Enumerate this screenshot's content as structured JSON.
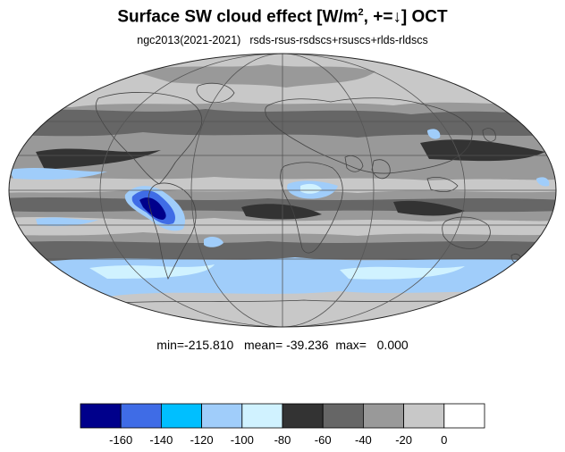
{
  "header": {
    "title_main": "Surface SW cloud effect [W/m",
    "title_sup": "2",
    "title_rest": ", +=↓]  OCT",
    "subtitle_left": "ngc2013(2021-2021)",
    "subtitle_right": "rsds-rsus-rsdscs+rsuscs+rlds-rldscs"
  },
  "stats": {
    "min_label": "min=",
    "min_value": "-215.810",
    "mean_label": "mean=",
    "mean_value": "-39.236",
    "max_label": "max=",
    "max_value": "0.000"
  },
  "colorbar": {
    "colors": [
      "#00008b",
      "#3f6ce6",
      "#00bfff",
      "#a0cdfa",
      "#d0f2ff",
      "#333333",
      "#666666",
      "#999999",
      "#c8c8c8",
      "#ffffff"
    ],
    "tick_labels": [
      "-160",
      "-140",
      "-120",
      "-100",
      "-80",
      "-60",
      "-40",
      "-20",
      "0"
    ]
  },
  "map": {
    "projection": "mollweide",
    "colors": {
      "land_outline": "#444444",
      "grid": "#555555",
      "deep": "#00008b",
      "mid_blue": "#3f6ce6",
      "cyan": "#00bfff",
      "light_blue": "#a0cdfa",
      "pale_blue": "#d0f2ff",
      "very_dark": "#333333",
      "dark": "#666666",
      "mid": "#999999",
      "light": "#c8c8c8"
    }
  }
}
